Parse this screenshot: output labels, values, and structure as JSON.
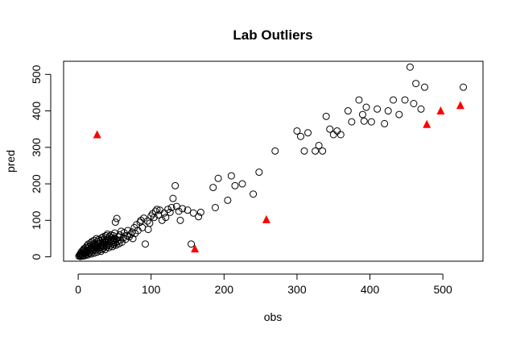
{
  "chart_data": {
    "type": "scatter",
    "title": "Lab Outliers",
    "xlabel": "obs",
    "ylabel": "pred",
    "xlim": [
      -20,
      555
    ],
    "ylim": [
      -12,
      536
    ],
    "x_ticks": [
      0,
      100,
      200,
      300,
      400,
      500
    ],
    "y_ticks": [
      0,
      100,
      200,
      300,
      400,
      500
    ],
    "grid": false,
    "series": [
      {
        "marker": "circle-open",
        "color": "#000000",
        "points": [
          [
            1,
            2
          ],
          [
            2,
            5
          ],
          [
            3,
            1
          ],
          [
            3,
            8
          ],
          [
            4,
            3
          ],
          [
            4,
            12
          ],
          [
            5,
            6
          ],
          [
            5,
            15
          ],
          [
            6,
            2
          ],
          [
            6,
            10
          ],
          [
            7,
            18
          ],
          [
            7,
            4
          ],
          [
            8,
            9
          ],
          [
            8,
            22
          ],
          [
            9,
            14
          ],
          [
            9,
            3
          ],
          [
            10,
            25
          ],
          [
            10,
            11
          ],
          [
            11,
            7
          ],
          [
            11,
            19
          ],
          [
            12,
            30
          ],
          [
            12,
            13
          ],
          [
            13,
            5
          ],
          [
            13,
            24
          ],
          [
            14,
            16
          ],
          [
            14,
            35
          ],
          [
            15,
            9
          ],
          [
            15,
            28
          ],
          [
            16,
            20
          ],
          [
            16,
            12
          ],
          [
            17,
            38
          ],
          [
            17,
            23
          ],
          [
            18,
            8
          ],
          [
            18,
            31
          ],
          [
            19,
            17
          ],
          [
            19,
            42
          ],
          [
            20,
            26
          ],
          [
            20,
            14
          ],
          [
            21,
            33
          ],
          [
            21,
            20
          ],
          [
            22,
            45
          ],
          [
            22,
            10
          ],
          [
            23,
            29
          ],
          [
            23,
            37
          ],
          [
            24,
            18
          ],
          [
            24,
            24
          ],
          [
            25,
            50
          ],
          [
            25,
            32
          ],
          [
            26,
            13
          ],
          [
            26,
            41
          ],
          [
            27,
            27
          ],
          [
            27,
            22
          ],
          [
            28,
            36
          ],
          [
            28,
            47
          ],
          [
            29,
            19
          ],
          [
            29,
            30
          ],
          [
            30,
            44
          ],
          [
            30,
            25
          ],
          [
            31,
            38
          ],
          [
            31,
            15
          ],
          [
            32,
            52
          ],
          [
            32,
            33
          ],
          [
            33,
            21
          ],
          [
            33,
            46
          ],
          [
            34,
            29
          ],
          [
            34,
            40
          ],
          [
            35,
            55
          ],
          [
            35,
            24
          ],
          [
            36,
            35
          ],
          [
            36,
            48
          ],
          [
            37,
            20
          ],
          [
            37,
            42
          ],
          [
            38,
            58
          ],
          [
            38,
            31
          ],
          [
            39,
            45
          ],
          [
            39,
            27
          ],
          [
            40,
            38
          ],
          [
            40,
            62
          ],
          [
            41,
            33
          ],
          [
            41,
            50
          ],
          [
            42,
            25
          ],
          [
            42,
            44
          ],
          [
            43,
            56
          ],
          [
            43,
            37
          ],
          [
            44,
            30
          ],
          [
            44,
            48
          ],
          [
            45,
            41
          ],
          [
            45,
            60
          ],
          [
            46,
            35
          ],
          [
            46,
            52
          ],
          [
            47,
            28
          ],
          [
            47,
            45
          ],
          [
            48,
            58
          ],
          [
            48,
            40
          ],
          [
            49,
            33
          ],
          [
            49,
            50
          ],
          [
            50,
            44
          ],
          [
            50,
            65
          ],
          [
            51,
            38
          ],
          [
            51,
            95
          ],
          [
            52,
            48
          ],
          [
            52,
            32
          ],
          [
            53,
            105
          ],
          [
            54,
            42
          ],
          [
            55,
            55
          ],
          [
            56,
            36
          ],
          [
            57,
            60
          ],
          [
            58,
            46
          ],
          [
            59,
            70
          ],
          [
            60,
            40
          ],
          [
            62,
            52
          ],
          [
            63,
            66
          ],
          [
            65,
            48
          ],
          [
            67,
            58
          ],
          [
            68,
            72
          ],
          [
            70,
            55
          ],
          [
            72,
            62
          ],
          [
            74,
            68
          ],
          [
            75,
            50
          ],
          [
            77,
            80
          ],
          [
            78,
            64
          ],
          [
            80,
            88
          ],
          [
            82,
            72
          ],
          [
            85,
            95
          ],
          [
            86,
            100
          ],
          [
            88,
            80
          ],
          [
            90,
            106
          ],
          [
            92,
            35
          ],
          [
            95,
            98
          ],
          [
            96,
            75
          ],
          [
            98,
            92
          ],
          [
            100,
            112
          ],
          [
            102,
            118
          ],
          [
            104,
            108
          ],
          [
            106,
            125
          ],
          [
            108,
            130
          ],
          [
            110,
            115
          ],
          [
            112,
            128
          ],
          [
            115,
            100
          ],
          [
            118,
            120
          ],
          [
            120,
            108
          ],
          [
            123,
            130
          ],
          [
            126,
            122
          ],
          [
            128,
            135
          ],
          [
            130,
            160
          ],
          [
            133,
            195
          ],
          [
            135,
            138
          ],
          [
            138,
            125
          ],
          [
            140,
            100
          ],
          [
            143,
            132
          ],
          [
            150,
            128
          ],
          [
            155,
            35
          ],
          [
            158,
            120
          ],
          [
            165,
            110
          ],
          [
            168,
            122
          ],
          [
            185,
            190
          ],
          [
            188,
            135
          ],
          [
            192,
            215
          ],
          [
            205,
            155
          ],
          [
            210,
            222
          ],
          [
            215,
            195
          ],
          [
            225,
            200
          ],
          [
            240,
            172
          ],
          [
            248,
            232
          ],
          [
            270,
            290
          ],
          [
            300,
            345
          ],
          [
            305,
            330
          ],
          [
            310,
            290
          ],
          [
            315,
            340
          ],
          [
            325,
            290
          ],
          [
            330,
            305
          ],
          [
            335,
            290
          ],
          [
            340,
            385
          ],
          [
            345,
            350
          ],
          [
            350,
            335
          ],
          [
            355,
            345
          ],
          [
            360,
            335
          ],
          [
            370,
            400
          ],
          [
            375,
            370
          ],
          [
            385,
            430
          ],
          [
            390,
            390
          ],
          [
            392,
            372
          ],
          [
            395,
            410
          ],
          [
            402,
            370
          ],
          [
            410,
            405
          ],
          [
            420,
            365
          ],
          [
            425,
            400
          ],
          [
            432,
            430
          ],
          [
            440,
            390
          ],
          [
            448,
            430
          ],
          [
            455,
            520
          ],
          [
            460,
            420
          ],
          [
            463,
            475
          ],
          [
            470,
            405
          ],
          [
            475,
            465
          ],
          [
            528,
            465
          ]
        ]
      },
      {
        "marker": "triangle-filled",
        "color": "#ff0000",
        "points": [
          [
            26,
            335
          ],
          [
            160,
            22
          ],
          [
            258,
            102
          ],
          [
            478,
            363
          ],
          [
            497,
            400
          ],
          [
            524,
            415
          ]
        ]
      }
    ]
  }
}
